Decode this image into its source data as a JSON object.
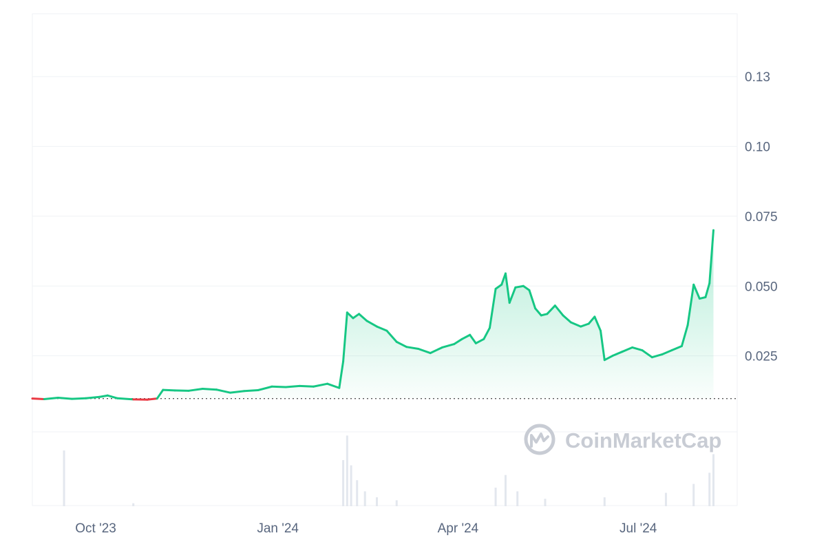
{
  "watermark": "CoinMarketCap",
  "chart_data": {
    "type": "area",
    "x_range": [
      "2023-08-30",
      "2024-08-20"
    ],
    "ylim": [
      0.0,
      0.1475
    ],
    "y_ticks": [
      0.025,
      0.05,
      0.075,
      0.1,
      0.125
    ],
    "y_tick_labels": [
      "0.025",
      "0.050",
      "0.075",
      "0.10",
      "0.13"
    ],
    "x_ticks": [
      {
        "date": "2023-10-01",
        "label": "Oct '23"
      },
      {
        "date": "2024-01-01",
        "label": "Jan '24"
      },
      {
        "date": "2024-04-01",
        "label": "Apr '24"
      },
      {
        "date": "2024-07-01",
        "label": "Jul '24"
      }
    ],
    "baseline": 0.0097,
    "colors": {
      "up": "#16c784",
      "down": "#ea3943",
      "baseline": "#555555",
      "grid": "#eff2f5",
      "volume": "#e3e7ee"
    },
    "price": [
      [
        "2023-08-30",
        0.0097
      ],
      [
        "2023-09-05",
        0.0095
      ],
      [
        "2023-09-12",
        0.01
      ],
      [
        "2023-09-19",
        0.0096
      ],
      [
        "2023-09-26",
        0.0098
      ],
      [
        "2023-10-03",
        0.0103
      ],
      [
        "2023-10-07",
        0.0108
      ],
      [
        "2023-10-12",
        0.0098
      ],
      [
        "2023-10-20",
        0.0094
      ],
      [
        "2023-10-27",
        0.0093
      ],
      [
        "2023-11-01",
        0.0097
      ],
      [
        "2023-11-04",
        0.0128
      ],
      [
        "2023-11-10",
        0.0126
      ],
      [
        "2023-11-17",
        0.0125
      ],
      [
        "2023-11-24",
        0.0132
      ],
      [
        "2023-12-01",
        0.0129
      ],
      [
        "2023-12-08",
        0.0118
      ],
      [
        "2023-12-15",
        0.0124
      ],
      [
        "2023-12-22",
        0.0127
      ],
      [
        "2023-12-29",
        0.014
      ],
      [
        "2024-01-05",
        0.0138
      ],
      [
        "2024-01-12",
        0.0142
      ],
      [
        "2024-01-19",
        0.014
      ],
      [
        "2024-01-26",
        0.015
      ],
      [
        "2024-02-01",
        0.0135
      ],
      [
        "2024-02-03",
        0.023
      ],
      [
        "2024-02-05",
        0.0405
      ],
      [
        "2024-02-08",
        0.0385
      ],
      [
        "2024-02-11",
        0.04
      ],
      [
        "2024-02-15",
        0.0375
      ],
      [
        "2024-02-20",
        0.0355
      ],
      [
        "2024-02-25",
        0.034
      ],
      [
        "2024-03-01",
        0.03
      ],
      [
        "2024-03-06",
        0.0282
      ],
      [
        "2024-03-12",
        0.0275
      ],
      [
        "2024-03-18",
        0.026
      ],
      [
        "2024-03-24",
        0.028
      ],
      [
        "2024-03-30",
        0.0292
      ],
      [
        "2024-04-03",
        0.031
      ],
      [
        "2024-04-07",
        0.0325
      ],
      [
        "2024-04-10",
        0.0295
      ],
      [
        "2024-04-14",
        0.031
      ],
      [
        "2024-04-17",
        0.035
      ],
      [
        "2024-04-20",
        0.049
      ],
      [
        "2024-04-23",
        0.0505
      ],
      [
        "2024-04-25",
        0.0545
      ],
      [
        "2024-04-27",
        0.044
      ],
      [
        "2024-04-30",
        0.0495
      ],
      [
        "2024-05-04",
        0.05
      ],
      [
        "2024-05-07",
        0.0485
      ],
      [
        "2024-05-10",
        0.042
      ],
      [
        "2024-05-13",
        0.0395
      ],
      [
        "2024-05-16",
        0.04
      ],
      [
        "2024-05-20",
        0.043
      ],
      [
        "2024-05-24",
        0.0395
      ],
      [
        "2024-05-28",
        0.037
      ],
      [
        "2024-06-02",
        0.0355
      ],
      [
        "2024-06-06",
        0.0365
      ],
      [
        "2024-06-09",
        0.039
      ],
      [
        "2024-06-12",
        0.034
      ],
      [
        "2024-06-14",
        0.0235
      ],
      [
        "2024-06-18",
        0.025
      ],
      [
        "2024-06-23",
        0.0265
      ],
      [
        "2024-06-28",
        0.028
      ],
      [
        "2024-07-03",
        0.027
      ],
      [
        "2024-07-08",
        0.0245
      ],
      [
        "2024-07-13",
        0.0255
      ],
      [
        "2024-07-18",
        0.027
      ],
      [
        "2024-07-23",
        0.0285
      ],
      [
        "2024-07-26",
        0.036
      ],
      [
        "2024-07-29",
        0.0505
      ],
      [
        "2024-08-01",
        0.0455
      ],
      [
        "2024-08-04",
        0.046
      ],
      [
        "2024-08-06",
        0.051
      ],
      [
        "2024-08-08",
        0.07
      ]
    ],
    "volume": [
      [
        "2023-09-15",
        0.75
      ],
      [
        "2023-10-20",
        0.04
      ],
      [
        "2024-02-03",
        0.62
      ],
      [
        "2024-02-05",
        0.95
      ],
      [
        "2024-02-07",
        0.55
      ],
      [
        "2024-02-10",
        0.35
      ],
      [
        "2024-02-14",
        0.2
      ],
      [
        "2024-02-20",
        0.12
      ],
      [
        "2024-03-01",
        0.08
      ],
      [
        "2024-04-20",
        0.25
      ],
      [
        "2024-04-25",
        0.42
      ],
      [
        "2024-05-01",
        0.2
      ],
      [
        "2024-05-15",
        0.1
      ],
      [
        "2024-06-14",
        0.12
      ],
      [
        "2024-07-15",
        0.18
      ],
      [
        "2024-07-29",
        0.3
      ],
      [
        "2024-08-06",
        0.45
      ],
      [
        "2024-08-08",
        0.7
      ]
    ]
  }
}
